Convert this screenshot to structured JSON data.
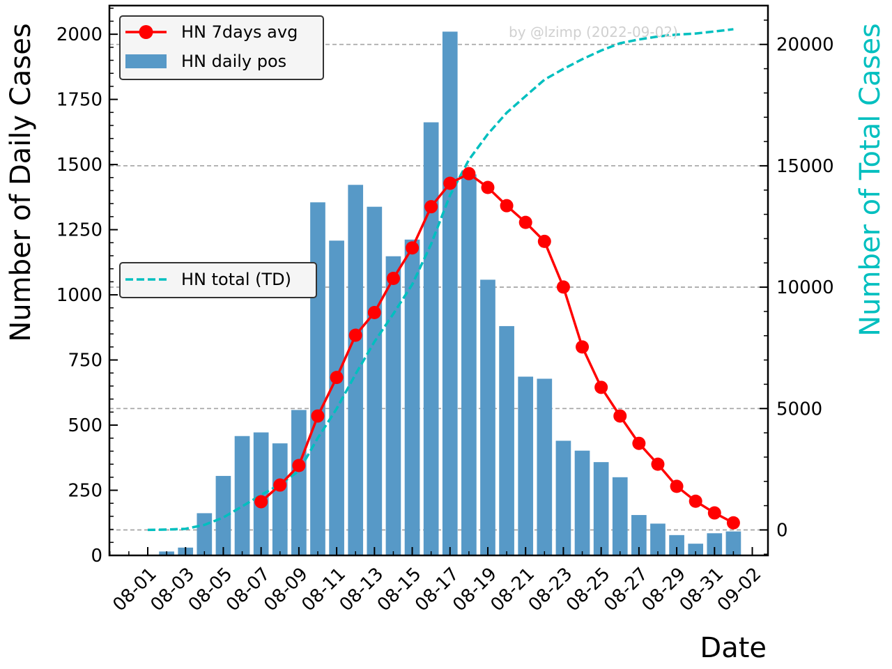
{
  "chart_data": {
    "type": "bar",
    "xlabel": "Date",
    "ylabel_left": "Number of Daily Cases",
    "ylabel_right": "Number of Total Cases",
    "watermark": "by @lzimp (2022-09-02)",
    "x_ticks": [
      "08-01",
      "08-03",
      "08-05",
      "08-07",
      "08-09",
      "08-11",
      "08-13",
      "08-15",
      "08-17",
      "08-19",
      "08-21",
      "08-23",
      "08-25",
      "08-27",
      "08-29",
      "08-31",
      "09-02"
    ],
    "y_left_ticks": [
      0,
      250,
      500,
      750,
      1000,
      1250,
      1500,
      1750,
      2000
    ],
    "y_right_ticks": [
      0,
      5000,
      10000,
      15000,
      20000
    ],
    "y_left_lim": [
      0,
      2110
    ],
    "y_right_lim": [
      -1050,
      21600
    ],
    "grid": "horizontal dashed at right-axis ticks",
    "legends": [
      {
        "placement": "top-left",
        "entries": [
          "HN 7days avg",
          "HN daily pos"
        ]
      },
      {
        "placement": "center-left",
        "entries": [
          "HN total (TD)"
        ]
      }
    ],
    "colors": {
      "bars": "#5799c7",
      "avg_line": "#ff0000",
      "total_line": "#00bfbf",
      "right_axis_label": "#00bfbf",
      "grid": "#aaaaaa"
    },
    "series": [
      {
        "name": "HN daily pos",
        "kind": "bar",
        "axis": "left",
        "dates": [
          "08-02",
          "08-03",
          "08-04",
          "08-05",
          "08-06",
          "08-07",
          "08-08",
          "08-09",
          "08-10",
          "08-11",
          "08-12",
          "08-13",
          "08-14",
          "08-15",
          "08-16",
          "08-17",
          "08-18",
          "08-19",
          "08-20",
          "08-21",
          "08-22",
          "08-23",
          "08-24",
          "08-25",
          "08-26",
          "08-27",
          "08-28",
          "08-29",
          "08-30",
          "08-31",
          "09-01"
        ],
        "values": [
          15,
          30,
          162,
          305,
          458,
          472,
          430,
          558,
          1355,
          1208,
          1422,
          1338,
          1148,
          1212,
          1662,
          2010,
          1462,
          1058,
          880,
          686,
          678,
          440,
          402,
          358,
          300,
          155,
          122,
          78,
          45,
          85,
          92
        ]
      },
      {
        "name": "HN 7days avg",
        "kind": "line",
        "axis": "left",
        "dates": [
          "08-07",
          "08-08",
          "08-09",
          "08-10",
          "08-11",
          "08-12",
          "08-13",
          "08-14",
          "08-15",
          "08-16",
          "08-17",
          "08-18",
          "08-19",
          "08-20",
          "08-21",
          "08-22",
          "08-23",
          "08-24",
          "08-25",
          "08-26",
          "08-27",
          "08-28",
          "08-29",
          "08-30",
          "08-31",
          "09-01"
        ],
        "values": [
          206,
          270,
          345,
          535,
          683,
          845,
          932,
          1063,
          1180,
          1338,
          1428,
          1465,
          1412,
          1342,
          1278,
          1205,
          1030,
          800,
          645,
          535,
          430,
          350,
          265,
          208,
          163,
          125
        ]
      },
      {
        "name": "HN total (TD)",
        "kind": "line",
        "axis": "right",
        "dates": [
          "08-01",
          "08-02",
          "08-03",
          "08-04",
          "08-05",
          "08-06",
          "08-07",
          "08-08",
          "08-09",
          "08-10",
          "08-11",
          "08-12",
          "08-13",
          "08-14",
          "08-15",
          "08-16",
          "08-17",
          "08-18",
          "08-19",
          "08-20",
          "08-21",
          "08-22",
          "08-23",
          "08-24",
          "08-25",
          "08-26",
          "08-27",
          "08-28",
          "08-29",
          "08-30",
          "08-31",
          "09-01"
        ],
        "values": [
          0,
          15,
          45,
          207,
          512,
          970,
          1442,
          1872,
          2430,
          3785,
          4993,
          6415,
          7753,
          8901,
          10113,
          11775,
          13785,
          15247,
          16305,
          17185,
          17871,
          18549,
          18989,
          19391,
          19749,
          20049,
          20204,
          20326,
          20404,
          20449,
          20534,
          20626
        ]
      }
    ]
  }
}
